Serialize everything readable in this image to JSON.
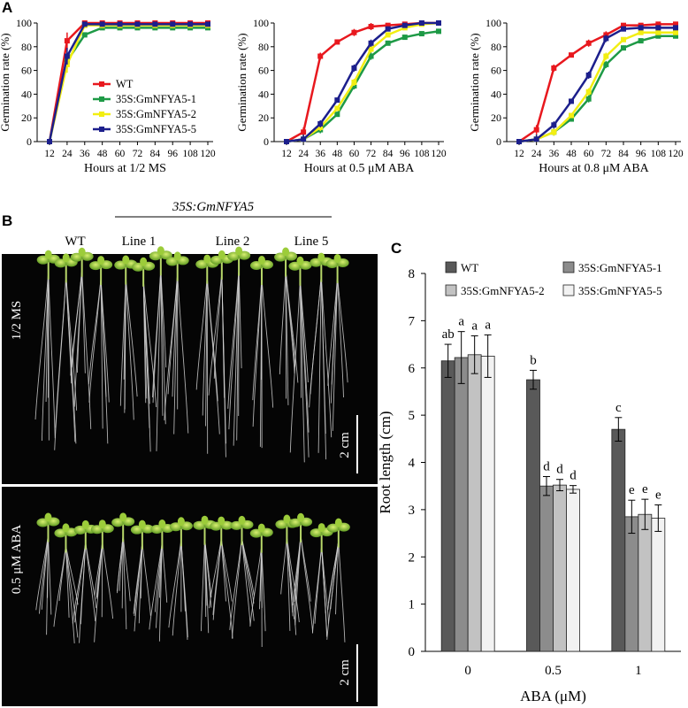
{
  "panel_labels": {
    "a": "A",
    "b": "B",
    "c": "C"
  },
  "colors": {
    "WT": "#e8181e",
    "35S:GmNFYA5-1": "#1e9a46",
    "35S:GmNFYA5-2": "#f2ee12",
    "35S:GmNFYA5-5": "#1c1f8c"
  },
  "photo": {
    "construct_label": "35S:GmNFYA5",
    "columns": [
      "WT",
      "Line 1",
      "Line 2",
      "Line 5"
    ],
    "row_labels": [
      "1/2 MS",
      "0.5 μM ABA"
    ],
    "scale_bar_label": "2 cm"
  },
  "chart_data": [
    {
      "type": "line",
      "ylabel": "Germination rate (%)",
      "xlabel": "Hours at 1/2 MS",
      "x": [
        12,
        24,
        36,
        48,
        60,
        72,
        84,
        96,
        108,
        120
      ],
      "ylim": [
        0,
        100
      ],
      "yticks": [
        0,
        20,
        40,
        60,
        80,
        100
      ],
      "legend_position": "center-right",
      "series": [
        {
          "name": "WT",
          "values": [
            0,
            85,
            100,
            100,
            100,
            100,
            100,
            100,
            100,
            100
          ]
        },
        {
          "name": "35S:GmNFYA5-1",
          "values": [
            0,
            68,
            90,
            96,
            96,
            96,
            96,
            96,
            96,
            96
          ]
        },
        {
          "name": "35S:GmNFYA5-2",
          "values": [
            0,
            65,
            98,
            98,
            98,
            98,
            98,
            98,
            98,
            98
          ]
        },
        {
          "name": "35S:GmNFYA5-5",
          "values": [
            0,
            72,
            99,
            99,
            99,
            99,
            99,
            99,
            99,
            99
          ]
        }
      ]
    },
    {
      "type": "line",
      "ylabel": "Germination rate (%)",
      "xlabel": "Hours at 0.5 μM ABA",
      "x": [
        12,
        24,
        36,
        48,
        60,
        72,
        84,
        96,
        108,
        120
      ],
      "ylim": [
        0,
        100
      ],
      "yticks": [
        0,
        20,
        40,
        60,
        80,
        100
      ],
      "series": [
        {
          "name": "WT",
          "values": [
            0,
            8,
            72,
            84,
            92,
            97,
            98,
            99,
            100,
            100
          ]
        },
        {
          "name": "35S:GmNFYA5-1",
          "values": [
            0,
            2,
            10,
            23,
            47,
            72,
            83,
            88,
            91,
            93
          ]
        },
        {
          "name": "35S:GmNFYA5-2",
          "values": [
            0,
            2,
            12,
            28,
            50,
            78,
            90,
            96,
            99,
            100
          ]
        },
        {
          "name": "35S:GmNFYA5-5",
          "values": [
            0,
            2,
            15,
            35,
            62,
            83,
            95,
            98,
            100,
            100
          ]
        }
      ]
    },
    {
      "type": "line",
      "ylabel": "Germination rate (%)",
      "xlabel": "Hours at 0.8 μM ABA",
      "x": [
        12,
        24,
        36,
        48,
        60,
        72,
        84,
        96,
        108,
        120
      ],
      "ylim": [
        0,
        100
      ],
      "yticks": [
        0,
        20,
        40,
        60,
        80,
        100
      ],
      "series": [
        {
          "name": "WT",
          "values": [
            0,
            10,
            62,
            73,
            83,
            90,
            98,
            98,
            99,
            99
          ]
        },
        {
          "name": "35S:GmNFYA5-1",
          "values": [
            0,
            2,
            8,
            19,
            36,
            65,
            79,
            85,
            89,
            89
          ]
        },
        {
          "name": "35S:GmNFYA5-2",
          "values": [
            0,
            2,
            8,
            22,
            42,
            72,
            86,
            92,
            92,
            92
          ]
        },
        {
          "name": "35S:GmNFYA5-5",
          "values": [
            0,
            2,
            14,
            34,
            56,
            87,
            95,
            96,
            96,
            96
          ]
        }
      ]
    },
    {
      "type": "bar",
      "ylabel": "Root length (cm)",
      "xlabel": "ABA (μM)",
      "categories": [
        "0",
        "0.5",
        "1"
      ],
      "ylim": [
        0,
        8
      ],
      "yticks": [
        0,
        1,
        2,
        3,
        4,
        5,
        6,
        7,
        8
      ],
      "legend_position": "top",
      "series": [
        {
          "name": "WT",
          "color": "#595959",
          "values": [
            6.15,
            5.75,
            4.7
          ],
          "errors": [
            0.35,
            0.2,
            0.25
          ],
          "letters": [
            "ab",
            "b",
            "c"
          ]
        },
        {
          "name": "35S:GmNFYA5-1",
          "color": "#8c8c8c",
          "values": [
            6.22,
            3.5,
            2.85
          ],
          "errors": [
            0.55,
            0.2,
            0.35
          ],
          "letters": [
            "a",
            "d",
            "e"
          ]
        },
        {
          "name": "35S:GmNFYA5-2",
          "color": "#c2c2c2",
          "values": [
            6.28,
            3.52,
            2.9
          ],
          "errors": [
            0.4,
            0.12,
            0.32
          ],
          "letters": [
            "a",
            "d",
            "e"
          ]
        },
        {
          "name": "35S:GmNFYA5-5",
          "color": "#f2f2f2",
          "values": [
            6.25,
            3.43,
            2.82
          ],
          "errors": [
            0.45,
            0.08,
            0.28
          ],
          "letters": [
            "a",
            "d",
            "e"
          ]
        }
      ]
    }
  ]
}
